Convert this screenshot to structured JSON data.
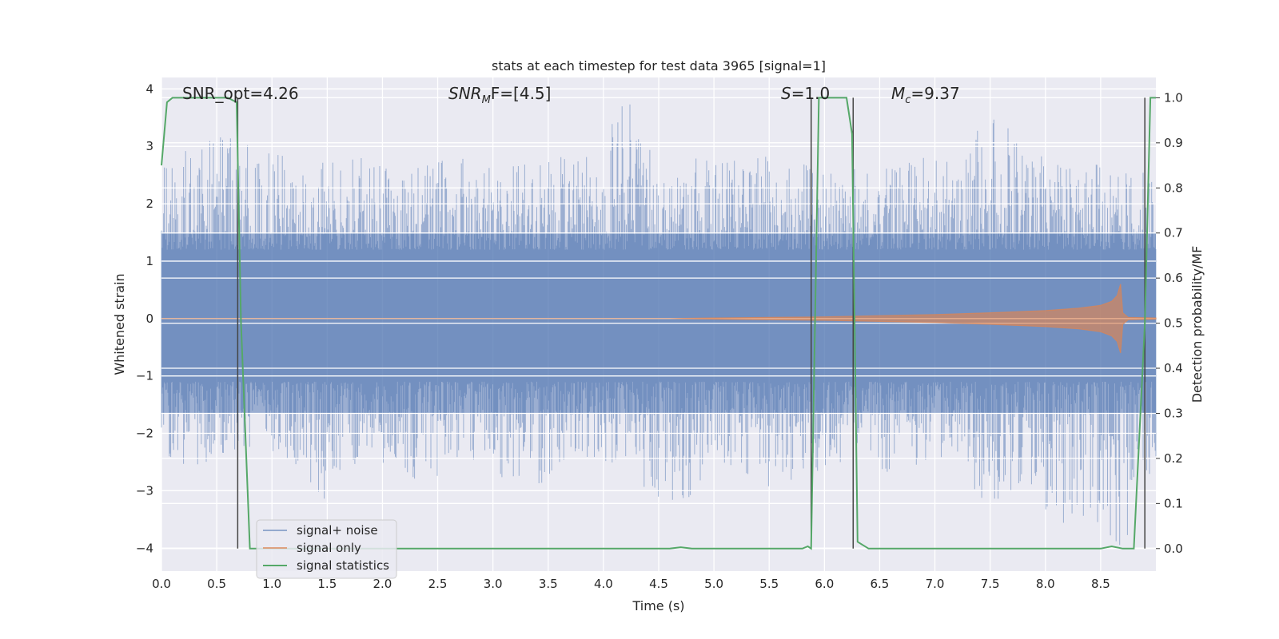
{
  "chart_data": {
    "type": "line",
    "title": "stats at each timestep for test data 3965 [signal=1]",
    "xlabel": "Time (s)",
    "ylabel": "Whitened strain",
    "y2label": "Detection probability/MF",
    "xlim": [
      0.0,
      9.0
    ],
    "ylim": [
      -4.4,
      4.2
    ],
    "y2lim": [
      -0.05,
      1.045
    ],
    "grid": true,
    "legend_position": "lower-left",
    "x_ticks": [
      "0.0",
      "0.5",
      "1.0",
      "1.5",
      "2.0",
      "2.5",
      "3.0",
      "3.5",
      "4.0",
      "4.5",
      "5.0",
      "5.5",
      "6.0",
      "6.5",
      "7.0",
      "7.5",
      "8.0",
      "8.5"
    ],
    "y_ticks": [
      "−4",
      "−3",
      "−2",
      "−1",
      "0",
      "1",
      "2",
      "3",
      "4"
    ],
    "y2_ticks": [
      "0.0",
      "0.1",
      "0.2",
      "0.3",
      "0.4",
      "0.5",
      "0.6",
      "0.7",
      "0.8",
      "0.9",
      "1.0"
    ],
    "annotations": [
      {
        "text": "SNR_opt=4.26",
        "x": 0.19,
        "y": 3.9
      },
      {
        "prefix": "SNR",
        "sub": "M",
        "suffix": "F=[4.5]",
        "x": 2.6,
        "y": 3.9
      },
      {
        "prefix": "S",
        "sub": "",
        "suffix": "=1.0",
        "x": 5.62,
        "y": 3.9
      },
      {
        "prefix": "M",
        "sub": "c",
        "suffix": "=9.37",
        "x": 6.62,
        "y": 3.9
      }
    ],
    "vertical_markers_x": [
      0.69,
      5.88,
      6.26,
      8.9
    ],
    "noise_envelope": {
      "x": [
        0.0,
        0.3,
        0.6,
        0.9,
        1.2,
        1.5,
        1.8,
        2.1,
        2.4,
        2.7,
        3.0,
        3.3,
        3.6,
        3.9,
        4.2,
        4.5,
        4.8,
        5.1,
        5.4,
        5.7,
        6.0,
        6.3,
        6.6,
        6.9,
        7.2,
        7.5,
        7.8,
        8.1,
        8.4,
        8.7,
        9.0
      ],
      "upper": [
        2.7,
        3.0,
        3.2,
        2.9,
        2.8,
        2.7,
        2.8,
        2.6,
        2.7,
        2.8,
        2.6,
        2.7,
        2.9,
        2.8,
        3.9,
        2.6,
        2.8,
        2.7,
        2.9,
        2.8,
        2.5,
        2.7,
        2.6,
        2.8,
        2.7,
        3.8,
        2.9,
        2.8,
        2.7,
        2.6,
        2.7
      ],
      "lower": [
        -2.4,
        -2.6,
        -2.3,
        -2.2,
        -2.5,
        -3.2,
        -2.4,
        -2.6,
        -2.9,
        -2.4,
        -2.6,
        -3.2,
        -2.5,
        -2.4,
        -2.6,
        -3.2,
        -3.1,
        -2.5,
        -2.8,
        -3.2,
        -2.6,
        -2.4,
        -2.7,
        -2.5,
        -2.6,
        -3.3,
        -2.8,
        -3.6,
        -3.4,
        -4.0,
        -2.4
      ]
    },
    "series": [
      {
        "name": "signal+ noise",
        "color": "#4c72b0",
        "axis": "left"
      },
      {
        "name": "signal only",
        "color": "#dd8452",
        "axis": "left",
        "x": [
          0.0,
          4.6,
          5.0,
          5.5,
          6.0,
          6.5,
          7.0,
          7.5,
          8.0,
          8.3,
          8.5,
          8.6,
          8.65,
          8.68,
          8.7,
          8.75,
          9.0
        ],
        "amplitude": [
          0.0,
          0.0,
          0.01,
          0.02,
          0.03,
          0.05,
          0.07,
          0.1,
          0.14,
          0.18,
          0.23,
          0.3,
          0.4,
          0.6,
          0.1,
          0.02,
          0.01
        ]
      },
      {
        "name": "signal statistics",
        "color": "#55a868",
        "axis": "right",
        "x": [
          0.0,
          0.05,
          0.1,
          0.6,
          0.68,
          0.72,
          0.8,
          4.6,
          4.7,
          4.8,
          5.8,
          5.85,
          5.88,
          5.95,
          6.2,
          6.25,
          6.3,
          6.4,
          8.5,
          8.6,
          8.7,
          8.8,
          8.9,
          8.95,
          9.0
        ],
        "y": [
          0.85,
          0.99,
          1.0,
          1.0,
          0.99,
          0.5,
          0.0,
          0.0,
          0.003,
          0.0,
          0.0,
          0.005,
          0.0,
          1.0,
          1.0,
          0.92,
          0.015,
          0.0,
          0.0,
          0.005,
          0.0,
          0.0,
          0.5,
          1.0,
          1.0
        ]
      }
    ]
  }
}
